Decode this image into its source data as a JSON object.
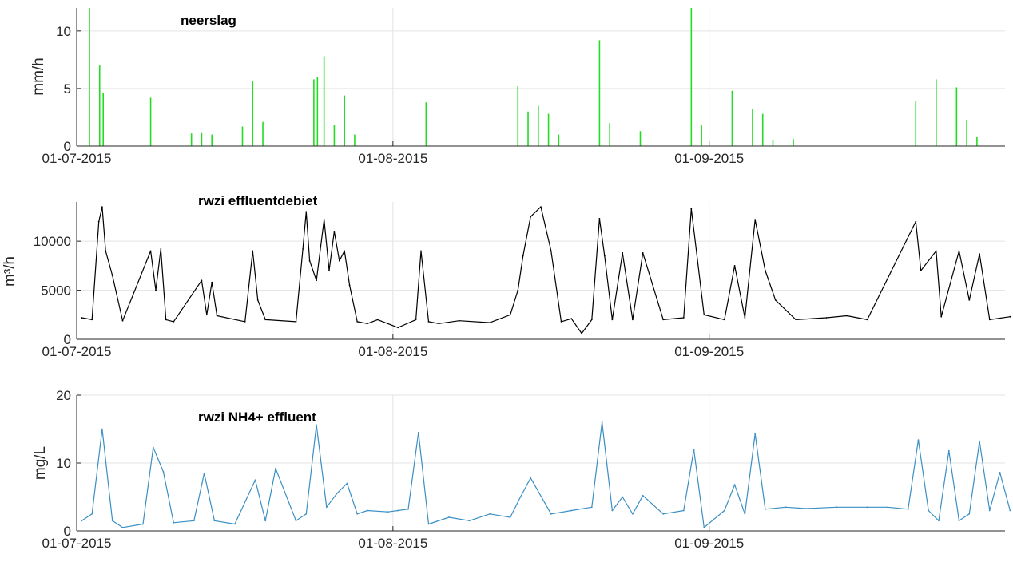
{
  "colors": {
    "rain": "#22dd22",
    "flow": "#000000",
    "nh4": "#3a8fc4",
    "axis": "#262626",
    "grid": "#e3e3e3"
  },
  "chart_data": [
    {
      "type": "bar",
      "title": "neerslag",
      "ylabel": "mm/h",
      "xlabel": "",
      "xlim": [
        "2015-07-01",
        "2015-09-30"
      ],
      "ylim": [
        0,
        12
      ],
      "yticks": [
        0,
        5,
        10
      ],
      "xticks": [
        "01-07-2015",
        "01-08-2015",
        "01-09-2015"
      ],
      "grid": true,
      "series": [
        {
          "x": [
            "2015-07-02",
            "2015-07-03",
            "2015-07-03",
            "2015-07-08",
            "2015-07-12",
            "2015-07-13",
            "2015-07-14",
            "2015-07-17",
            "2015-07-18",
            "2015-07-19",
            "2015-07-24",
            "2015-07-24",
            "2015-07-25",
            "2015-07-26",
            "2015-07-27",
            "2015-07-28",
            "2015-08-04",
            "2015-08-13",
            "2015-08-14",
            "2015-08-15",
            "2015-08-16",
            "2015-08-17",
            "2015-08-21",
            "2015-08-22",
            "2015-08-25",
            "2015-08-30",
            "2015-08-31",
            "2015-09-03",
            "2015-09-05",
            "2015-09-06",
            "2015-09-07",
            "2015-09-09",
            "2015-09-21",
            "2015-09-23",
            "2015-09-25",
            "2015-09-26",
            "2015-09-27"
          ],
          "values": [
            12,
            7,
            4.6,
            4.2,
            1.1,
            1.2,
            1.0,
            1.7,
            5.7,
            2.1,
            5.8,
            6.0,
            7.8,
            1.8,
            4.4,
            1.0,
            3.8,
            5.2,
            3.0,
            3.5,
            2.8,
            1.0,
            9.2,
            2.0,
            1.3,
            12,
            1.8,
            4.8,
            3.2,
            2.8,
            0.5,
            0.6,
            3.9,
            5.8,
            5.1,
            2.3,
            0.8
          ]
        }
      ]
    },
    {
      "type": "line",
      "title": "rwzi effluentdebiet",
      "ylabel": "m³/h",
      "xlabel": "",
      "xlim": [
        "2015-07-01",
        "2015-09-30"
      ],
      "ylim": [
        0,
        14000
      ],
      "yticks": [
        0,
        5000,
        10000
      ],
      "xticks": [
        "01-07-2015",
        "01-08-2015",
        "01-09-2015"
      ],
      "grid": true,
      "series": [
        {
          "x": [
            "2015-07-01",
            "2015-07-02",
            "2015-07-03",
            "2015-07-03",
            "2015-07-03",
            "2015-07-04",
            "2015-07-05",
            "2015-07-08",
            "2015-07-08",
            "2015-07-09",
            "2015-07-09",
            "2015-07-10",
            "2015-07-13",
            "2015-07-13",
            "2015-07-14",
            "2015-07-14",
            "2015-07-17",
            "2015-07-18",
            "2015-07-18",
            "2015-07-19",
            "2015-07-22",
            "2015-07-23",
            "2015-07-23",
            "2015-07-23",
            "2015-07-24",
            "2015-07-25",
            "2015-07-25",
            "2015-07-26",
            "2015-07-26",
            "2015-07-27",
            "2015-07-27",
            "2015-07-28",
            "2015-07-29",
            "2015-07-30",
            "2015-08-01",
            "2015-08-03",
            "2015-08-03",
            "2015-08-04",
            "2015-08-05",
            "2015-08-07",
            "2015-08-10",
            "2015-08-12",
            "2015-08-13",
            "2015-08-13",
            "2015-08-14",
            "2015-08-15",
            "2015-08-16",
            "2015-08-17",
            "2015-08-18",
            "2015-08-19",
            "2015-08-20",
            "2015-08-21",
            "2015-08-21",
            "2015-08-22",
            "2015-08-23",
            "2015-08-24",
            "2015-08-25",
            "2015-08-27",
            "2015-08-29",
            "2015-08-30",
            "2015-08-30",
            "2015-08-31",
            "2015-09-02",
            "2015-09-03",
            "2015-09-04",
            "2015-09-05",
            "2015-09-06",
            "2015-09-07",
            "2015-09-09",
            "2015-09-12",
            "2015-09-14",
            "2015-09-16",
            "2015-09-21",
            "2015-09-21",
            "2015-09-23",
            "2015-09-23",
            "2015-09-25",
            "2015-09-26",
            "2015-09-27",
            "2015-09-28",
            "2015-09-30"
          ],
          "values": [
            2200,
            2000,
            12000,
            13500,
            9000,
            6500,
            1900,
            9000,
            5000,
            9200,
            2000,
            1800,
            6000,
            2500,
            5800,
            2400,
            1800,
            9000,
            4000,
            2000,
            1800,
            9200,
            13000,
            8000,
            6000,
            12200,
            7000,
            11000,
            8000,
            9000,
            5500,
            1800,
            1600,
            2000,
            1200,
            2000,
            9000,
            1800,
            1600,
            1900,
            1700,
            2500,
            5000,
            8500,
            12500,
            13500,
            9000,
            1800,
            2100,
            600,
            2000,
            12300,
            8500,
            2000,
            8800,
            2000,
            8800,
            2000,
            2200,
            13300,
            9000,
            2500,
            2000,
            7500,
            2200,
            12200,
            7000,
            4000,
            2000,
            2200,
            2400,
            2000,
            12000,
            7000,
            9000,
            2300,
            9000,
            4000,
            8700,
            2000,
            2300
          ]
        }
      ]
    },
    {
      "type": "line",
      "title": "rwzi NH4+ effluent",
      "ylabel": "mg/L",
      "xlabel": "",
      "xlim": [
        "2015-07-01",
        "2015-09-30"
      ],
      "ylim": [
        0,
        20
      ],
      "yticks": [
        0,
        10,
        20
      ],
      "xticks": [
        "01-07-2015",
        "01-08-2015",
        "01-09-2015"
      ],
      "grid": true,
      "series": [
        {
          "x": [
            "2015-07-01",
            "2015-07-02",
            "2015-07-03",
            "2015-07-04",
            "2015-07-05",
            "2015-07-07",
            "2015-07-08",
            "2015-07-09",
            "2015-07-10",
            "2015-07-12",
            "2015-07-13",
            "2015-07-14",
            "2015-07-16",
            "2015-07-18",
            "2015-07-19",
            "2015-07-20",
            "2015-07-22",
            "2015-07-23",
            "2015-07-24",
            "2015-07-25",
            "2015-07-26",
            "2015-07-27",
            "2015-07-28",
            "2015-07-29",
            "2015-07-31",
            "2015-08-01",
            "2015-08-02",
            "2015-08-03",
            "2015-08-04",
            "2015-08-06",
            "2015-08-08",
            "2015-08-10",
            "2015-08-12",
            "2015-08-13",
            "2015-08-14",
            "2015-08-16",
            "2015-08-18",
            "2015-08-20",
            "2015-08-21",
            "2015-08-22",
            "2015-08-23",
            "2015-08-24",
            "2015-08-25",
            "2015-08-27",
            "2015-08-29",
            "2015-08-30",
            "2015-08-31",
            "2015-09-02",
            "2015-09-03",
            "2015-09-04",
            "2015-09-05",
            "2015-09-06",
            "2015-09-08",
            "2015-09-10",
            "2015-09-13",
            "2015-09-16",
            "2015-09-18",
            "2015-09-20",
            "2015-09-21",
            "2015-09-22",
            "2015-09-23",
            "2015-09-24",
            "2015-09-25",
            "2015-09-26",
            "2015-09-27",
            "2015-09-28",
            "2015-09-29",
            "2015-09-30"
          ],
          "values": [
            1.5,
            2.5,
            15,
            1.5,
            0.5,
            1.0,
            12.3,
            8.7,
            1.2,
            1.5,
            8.5,
            1.5,
            1.0,
            7.5,
            1.5,
            9.2,
            1.5,
            2.5,
            15.6,
            3.5,
            5.5,
            7.0,
            2.5,
            3.0,
            2.8,
            3.0,
            3.2,
            14.5,
            1.0,
            2.0,
            1.5,
            2.5,
            2.0,
            5.0,
            7.8,
            2.5,
            3.0,
            3.5,
            16,
            3.0,
            5.0,
            2.5,
            5.2,
            2.5,
            3.0,
            12,
            0.5,
            3.0,
            6.8,
            2.5,
            14.3,
            3.2,
            3.5,
            3.3,
            3.5,
            3.5,
            3.5,
            3.2,
            13.4,
            3.0,
            1.5,
            11.8,
            1.5,
            2.5,
            13.2,
            3.0,
            8.6,
            3.0
          ]
        }
      ]
    }
  ]
}
